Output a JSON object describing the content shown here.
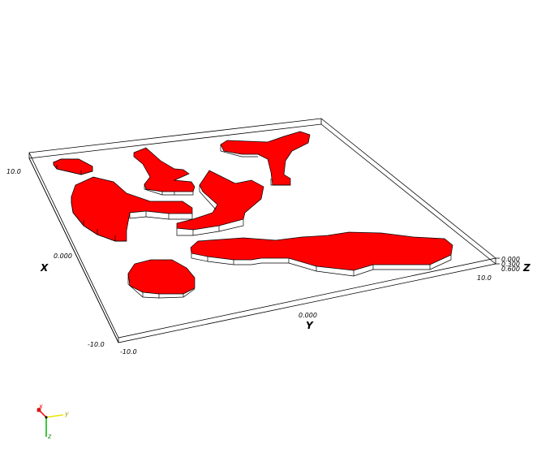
{
  "scene": {
    "object_color": "#ff0000",
    "edge_color": "#000000",
    "background": "#ffffff"
  },
  "axes": {
    "x": {
      "label": "X",
      "ticks": [
        "10.0",
        "0.000",
        "-10.0"
      ]
    },
    "y": {
      "label": "Y",
      "ticks": [
        "-10.0",
        "0.000",
        "10.0"
      ]
    },
    "z": {
      "label": "Z",
      "ticks": [
        "0.000",
        "0.300",
        "0.600"
      ]
    }
  },
  "triad": {
    "x": {
      "label": "x",
      "color": "#ff0000"
    },
    "y": {
      "label": "y",
      "color": "#e6e600"
    },
    "z": {
      "label": "z",
      "color": "#00b400"
    }
  }
}
